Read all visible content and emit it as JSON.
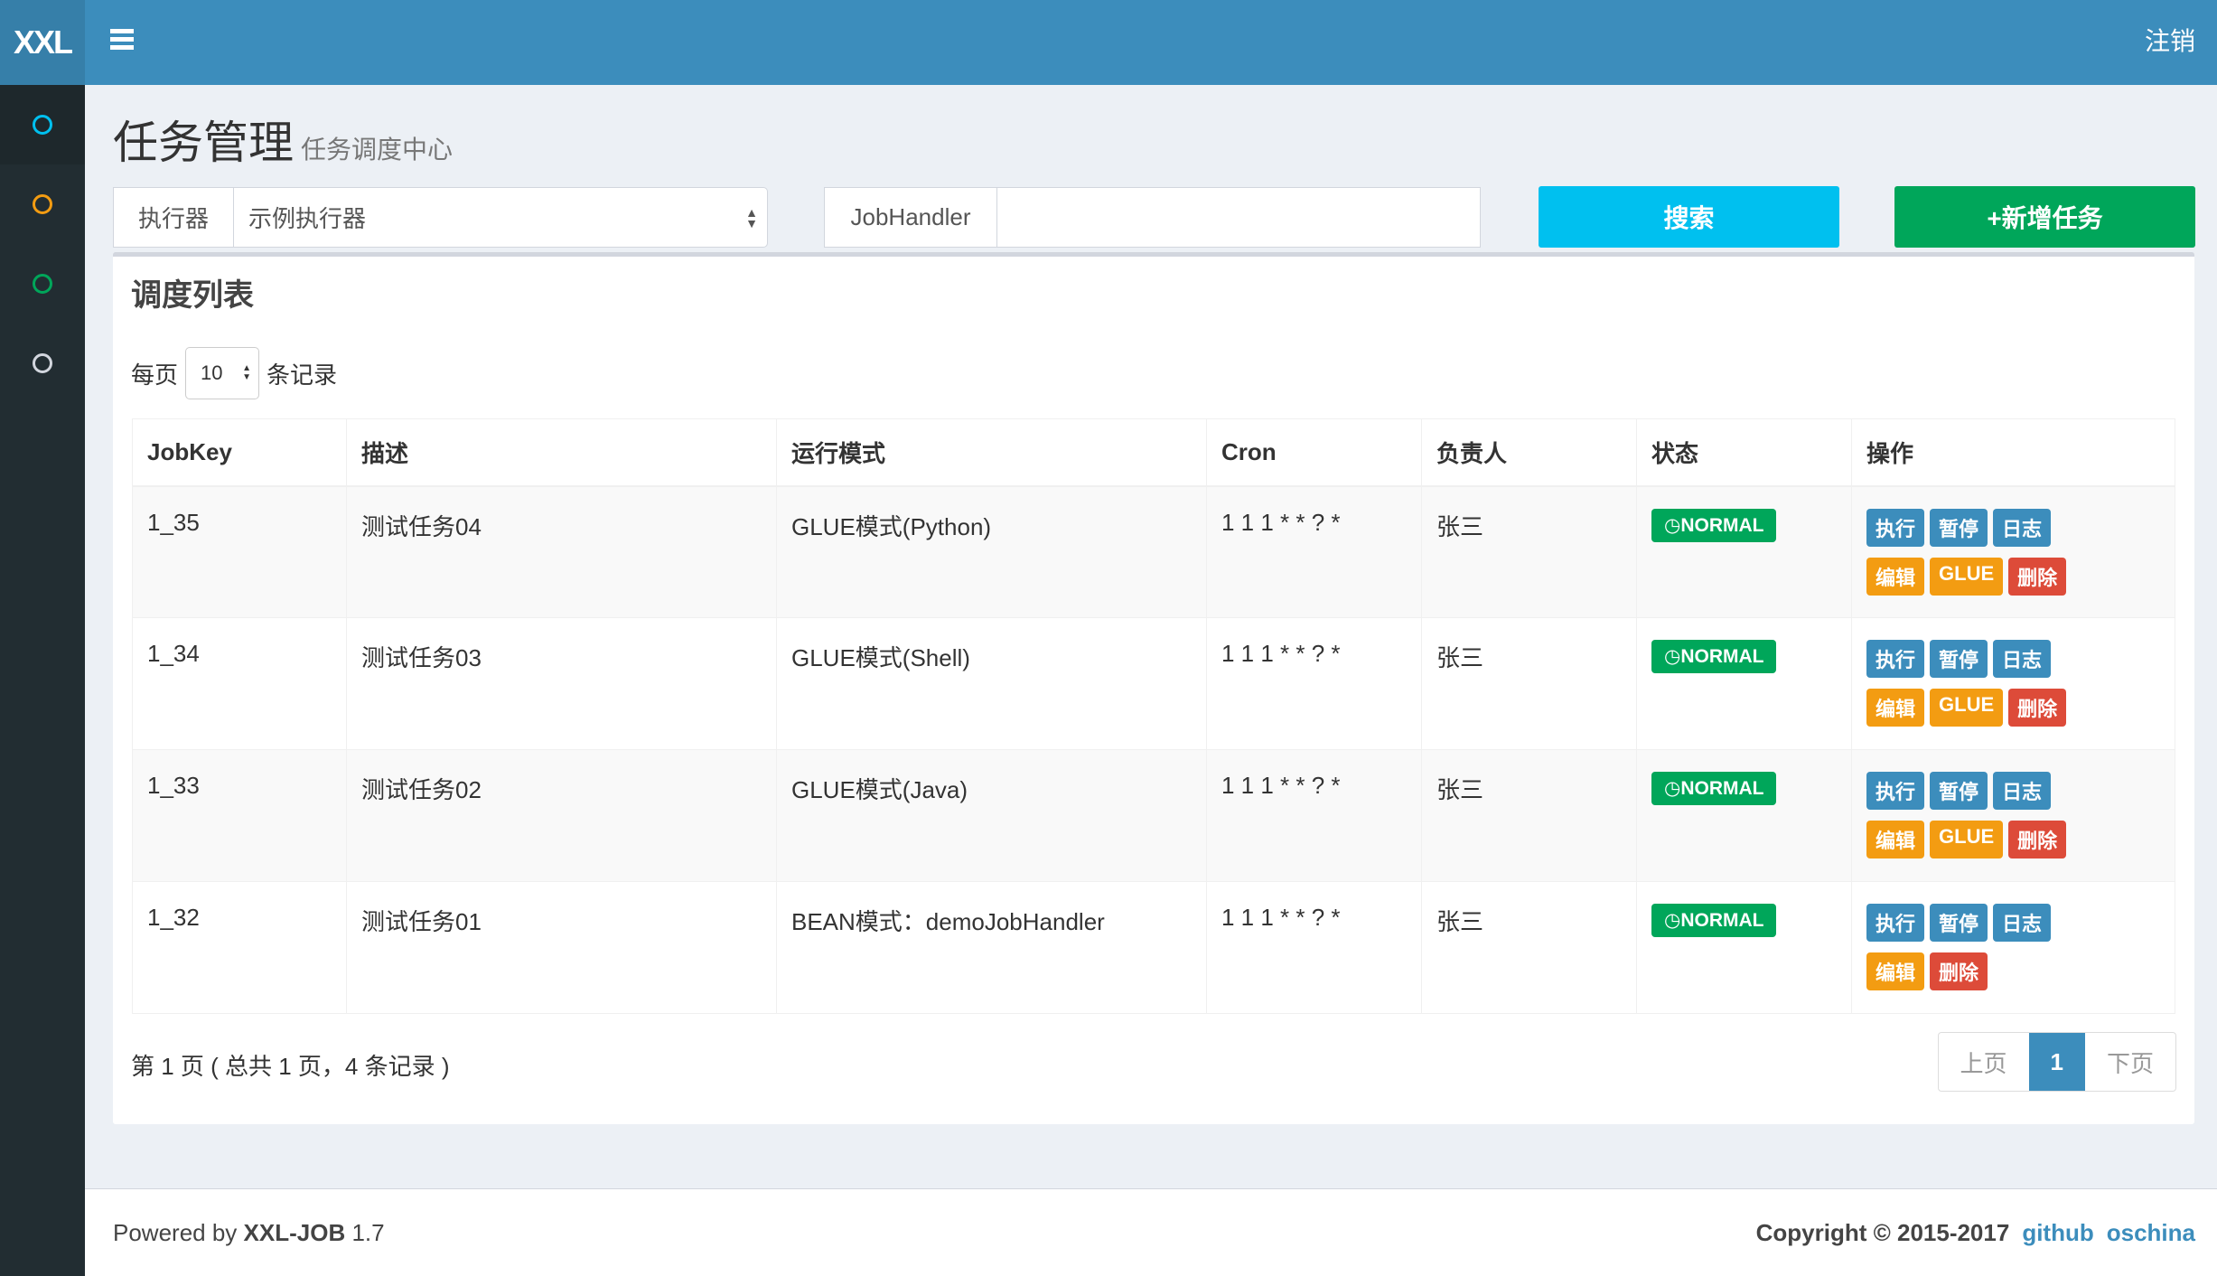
{
  "header": {
    "logo": "XXL",
    "logout": "注销"
  },
  "sidebar": {
    "items": [
      {
        "icon": "circle-icon",
        "color": "#00c0ef"
      },
      {
        "icon": "circle-icon",
        "color": "#f39c12"
      },
      {
        "icon": "circle-icon",
        "color": "#00a65a"
      },
      {
        "icon": "circle-icon",
        "color": "#d2d6de"
      }
    ]
  },
  "page": {
    "title": "任务管理",
    "subtitle": "任务调度中心"
  },
  "filters": {
    "executor_label": "执行器",
    "executor_value": "示例执行器",
    "jobhandler_label": "JobHandler",
    "jobhandler_value": "",
    "search": "搜索",
    "add": "+新增任务"
  },
  "box": {
    "title": "调度列表",
    "per_page_prefix": "每页",
    "per_page_value": "10",
    "per_page_suffix": "条记录"
  },
  "table": {
    "headers": [
      "JobKey",
      "描述",
      "运行模式",
      "Cron",
      "负责人",
      "状态",
      "操作"
    ],
    "rows": [
      {
        "key": "1_35",
        "desc": "测试任务04",
        "mode": "GLUE模式(Python)",
        "cron": "1 1 1 * * ? *",
        "owner": "张三",
        "status": "NORMAL",
        "ops": [
          "执行",
          "暂停",
          "日志",
          "编辑",
          "GLUE",
          "删除"
        ]
      },
      {
        "key": "1_34",
        "desc": "测试任务03",
        "mode": "GLUE模式(Shell)",
        "cron": "1 1 1 * * ? *",
        "owner": "张三",
        "status": "NORMAL",
        "ops": [
          "执行",
          "暂停",
          "日志",
          "编辑",
          "GLUE",
          "删除"
        ]
      },
      {
        "key": "1_33",
        "desc": "测试任务02",
        "mode": "GLUE模式(Java)",
        "cron": "1 1 1 * * ? *",
        "owner": "张三",
        "status": "NORMAL",
        "ops": [
          "执行",
          "暂停",
          "日志",
          "编辑",
          "GLUE",
          "删除"
        ]
      },
      {
        "key": "1_32",
        "desc": "测试任务01",
        "mode": "BEAN模式：demoJobHandler",
        "cron": "1 1 1 * * ? *",
        "owner": "张三",
        "status": "NORMAL",
        "ops": [
          "执行",
          "暂停",
          "日志",
          "编辑",
          "删除"
        ]
      }
    ]
  },
  "pagination": {
    "info": "第 1 页 ( 总共 1 页，4 条记录 )",
    "prev": "上页",
    "current": "1",
    "next": "下页"
  },
  "footer": {
    "powered_prefix": "Powered by ",
    "product": "XXL-JOB",
    "version": " 1.7",
    "copyright": "Copyright © 2015-2017",
    "link1": "github",
    "link2": "oschina"
  },
  "colors": {
    "primary": "#3c8dbc",
    "info": "#00c0ef",
    "success": "#00a65a",
    "warning": "#f39c12",
    "danger": "#dd4b39"
  }
}
